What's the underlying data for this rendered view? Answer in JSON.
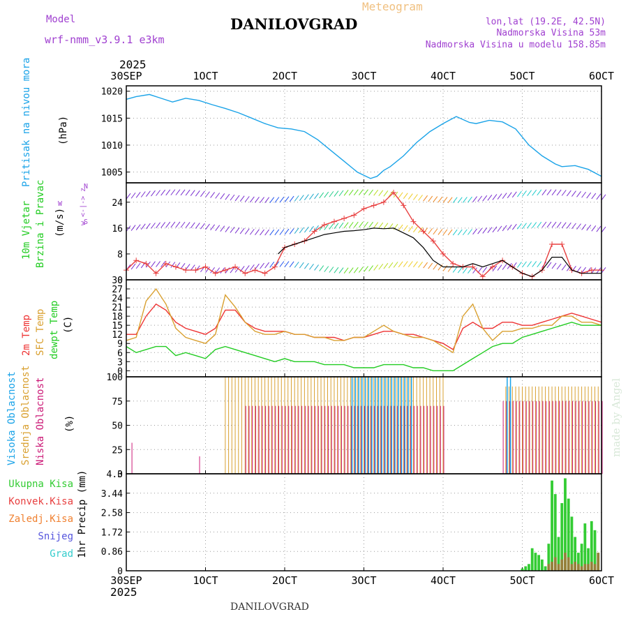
{
  "header": {
    "meteogram_label": "Meteogram",
    "model_label": "Model",
    "model_name": "wrf-nmm_v3.9.1 e3km",
    "station": "DANILOVGRAD",
    "lonlat": "lon,lat (19.2E, 42.5N)",
    "altitude": "Nadmorska Visina 53m",
    "model_altitude": "Nadmorska Visina u modelu 158.85m",
    "year_top": "2025",
    "year_bottom": "2025",
    "footer_station": "DANILOVGRAD",
    "credit": "made by Angel"
  },
  "colors": {
    "pressure": "#1aa3e8",
    "temp2m": "#ee3333",
    "sfc_temp": "#d9a030",
    "dewpt": "#22cc22",
    "wind_speed": "#e84040",
    "gust": "#000000",
    "high_cloud": "#1aa3e8",
    "mid_cloud": "#d9a030",
    "low_cloud": "#cc1a77",
    "total_precip": "#33cc33",
    "conv_precip": "#e84040",
    "frozen_precip": "#f08030",
    "snow": "#5555dd",
    "hail": "#33cccc",
    "purple_text": "#a040d0",
    "grid": "#999999"
  },
  "panel_labels": {
    "pressure": {
      "name": "Pritisak na nivou mora",
      "unit": "(hPa)"
    },
    "wind": {
      "name1": "10m Vjetar",
      "name2": "Brzina i Pravac",
      "unit": "(m/s)",
      "compass": "w <-|-> z",
      "compass_side": "W",
      "compass_top": "N",
      "compass_bottom": "S"
    },
    "temp": {
      "t2m": "2m Temp",
      "sfc": "SFC Temp",
      "dew": "dewpt Temp",
      "unit": "(C)"
    },
    "cloud": {
      "high": "Visoka Oblacnost",
      "mid": "Srednja Oblacnost",
      "low": "Niska Oblacnost",
      "unit": "(%)"
    },
    "precip": {
      "axis": "1hr Precip (mm)",
      "legend": [
        "Ukupna Kisa",
        "Konvek.Kisa",
        "Zaledj.Kisa",
        "Snijeg",
        "Grad"
      ]
    }
  },
  "chart_data": {
    "type": "line",
    "x_axis": {
      "ticks": [
        "30SEP",
        "1OCT",
        "2OCT",
        "3OCT",
        "4OCT",
        "5OCT",
        "6OCT"
      ],
      "unit": "hours",
      "range": [
        0,
        144
      ]
    },
    "panels": [
      {
        "name": "pressure",
        "type": "line",
        "ylabel": "(hPa)",
        "ylim": [
          1003,
          1021
        ],
        "yticks": [
          1005,
          1010,
          1015,
          1020
        ],
        "series": [
          {
            "name": "Pritisak na nivou mora",
            "x": [
              0,
              3,
              7,
              10,
              14,
              18,
              22,
              26,
              30,
              34,
              38,
              42,
              46,
              50,
              54,
              58,
              62,
              66,
              70,
              74,
              76,
              78,
              80,
              84,
              88,
              90,
              92,
              96,
              100,
              104,
              106,
              110,
              114,
              118,
              122,
              126,
              130,
              132,
              136,
              140,
              144
            ],
            "values": [
              1018.5,
              1019.0,
              1019.4,
              1018.8,
              1018.0,
              1018.7,
              1018.3,
              1017.5,
              1016.8,
              1016.0,
              1015.0,
              1014.0,
              1013.2,
              1013.0,
              1012.5,
              1011.0,
              1009.0,
              1007.0,
              1005.0,
              1003.8,
              1004.2,
              1005.3,
              1006.0,
              1008.0,
              1010.5,
              1011.5,
              1012.5,
              1014.0,
              1015.3,
              1014.2,
              1014.0,
              1014.6,
              1014.3,
              1013.0,
              1010.0,
              1008.0,
              1006.5,
              1006.0,
              1006.2,
              1005.5,
              1004.2
            ]
          }
        ]
      },
      {
        "name": "wind",
        "type": "line",
        "ylabel": "(m/s)",
        "ylim": [
          0,
          30
        ],
        "yticks": [
          0,
          8,
          16,
          24
        ],
        "series": [
          {
            "name": "10m wind speed",
            "x": [
              0,
              3,
              6,
              9,
              12,
              15,
              18,
              21,
              24,
              27,
              30,
              33,
              36,
              39,
              42,
              45,
              48,
              51,
              54,
              57,
              60,
              63,
              66,
              69,
              72,
              75,
              78,
              81,
              84,
              87,
              90,
              93,
              96,
              99,
              102,
              105,
              108,
              111,
              114,
              117,
              120,
              123,
              126,
              129,
              132,
              135,
              138,
              141,
              144
            ],
            "values": [
              3,
              6,
              5,
              2,
              5,
              4,
              3,
              3,
              4,
              2,
              3,
              4,
              2,
              3,
              2,
              4,
              10,
              11,
              12,
              15,
              17,
              18,
              19,
              20,
              22,
              23,
              24,
              27,
              23,
              18,
              15,
              12,
              8,
              5,
              4,
              4,
              1,
              4,
              6,
              4,
              2,
              1,
              3,
              11,
              11,
              3,
              2,
              3,
              3
            ]
          },
          {
            "name": "gust",
            "x": [
              96,
              99,
              102,
              105,
              108,
              111,
              114,
              117,
              120,
              123,
              126,
              129,
              132,
              135,
              138,
              141,
              144
            ],
            "values": [
              4,
              4,
              4,
              5,
              4,
              5,
              6,
              4,
              2,
              1,
              3,
              7,
              7,
              3,
              2,
              2,
              2
            ]
          },
          {
            "name": "black line",
            "x": [
              46,
              48,
              51,
              54,
              57,
              60,
              63,
              66,
              69,
              72,
              75,
              78,
              81,
              84,
              87,
              90,
              93,
              96
            ],
            "values": [
              8,
              10,
              11,
              12,
              13,
              14,
              14.5,
              15,
              15.2,
              15.5,
              16,
              15.8,
              16,
              14.5,
              13,
              10,
              6,
              4
            ]
          }
        ]
      },
      {
        "name": "temperature",
        "type": "line",
        "ylabel": "(C)",
        "ylim": [
          -2,
          30
        ],
        "yticks": [
          0,
          3,
          6,
          9,
          12,
          15,
          18,
          21,
          24,
          27,
          30
        ],
        "series": [
          {
            "name": "2m Temp",
            "x": [
              0,
              3,
              6,
              9,
              12,
              15,
              18,
              21,
              24,
              27,
              30,
              33,
              36,
              39,
              42,
              45,
              48,
              51,
              54,
              57,
              60,
              63,
              66,
              69,
              72,
              75,
              78,
              81,
              84,
              87,
              90,
              93,
              96,
              99,
              102,
              105,
              108,
              111,
              114,
              117,
              120,
              123,
              126,
              129,
              132,
              135,
              138,
              141,
              144
            ],
            "values": [
              12,
              12,
              18,
              22,
              20,
              16,
              14,
              13,
              12,
              14,
              20,
              20,
              16,
              14,
              13,
              13,
              13,
              12,
              12,
              11,
              11,
              11,
              10,
              11,
              11,
              12,
              13,
              13,
              12,
              12,
              11,
              10,
              9,
              7,
              14,
              16,
              14,
              14,
              16,
              16,
              15,
              15,
              16,
              17,
              18,
              19,
              18,
              17,
              16
            ]
          },
          {
            "name": "SFC Temp",
            "x": [
              0,
              3,
              6,
              9,
              12,
              15,
              18,
              21,
              24,
              27,
              30,
              33,
              36,
              39,
              42,
              45,
              48,
              51,
              54,
              57,
              60,
              63,
              66,
              69,
              72,
              75,
              78,
              81,
              84,
              87,
              90,
              93,
              96,
              99,
              102,
              105,
              108,
              111,
              114,
              117,
              120,
              123,
              126,
              129,
              132,
              135,
              138,
              141,
              144
            ],
            "values": [
              10,
              11,
              23,
              27,
              22,
              14,
              11,
              10,
              9,
              12,
              25,
              21,
              16,
              13,
              12,
              12,
              13,
              12,
              12,
              11,
              11,
              10,
              10,
              11,
              11,
              13,
              15,
              13,
              12,
              11,
              11,
              10,
              8,
              6,
              18,
              22,
              14,
              10,
              13,
              13,
              14,
              14,
              15,
              15,
              18,
              18,
              16,
              16,
              15
            ]
          },
          {
            "name": "dewpt Temp",
            "x": [
              0,
              3,
              6,
              9,
              12,
              15,
              18,
              21,
              24,
              27,
              30,
              33,
              36,
              39,
              42,
              45,
              48,
              51,
              54,
              57,
              60,
              63,
              66,
              69,
              72,
              75,
              78,
              81,
              84,
              87,
              90,
              93,
              96,
              99,
              102,
              105,
              108,
              111,
              114,
              117,
              120,
              123,
              126,
              129,
              132,
              135,
              138,
              141,
              144
            ],
            "values": [
              8,
              6,
              7,
              8,
              8,
              5,
              6,
              5,
              4,
              7,
              8,
              7,
              6,
              5,
              4,
              3,
              4,
              3,
              3,
              3,
              2,
              2,
              2,
              1,
              1,
              1,
              2,
              2,
              2,
              1,
              1,
              0,
              0,
              0,
              2,
              4,
              6,
              8,
              9,
              9,
              11,
              12,
              13,
              14,
              15,
              16,
              15,
              15,
              15
            ]
          }
        ]
      },
      {
        "name": "cloud",
        "type": "bar",
        "ylabel": "(%)",
        "ylim": [
          0,
          100
        ],
        "yticks": [
          0,
          25,
          50,
          75,
          100
        ],
        "series": [
          {
            "name": "Srednja Oblacnost",
            "segments": [
              [
                30,
                96,
                100
              ],
              [
                115,
                144,
                90
              ]
            ]
          },
          {
            "name": "Niska Oblacnost",
            "segments": [
              [
                1.5,
                2,
                32
              ],
              [
                22,
                22.3,
                18
              ],
              [
                36,
                96,
                70
              ],
              [
                114,
                144,
                75
              ]
            ]
          },
          {
            "name": "Visoka Oblacnost",
            "segments": [
              [
                68,
                86,
                100
              ],
              [
                115,
                116,
                100
              ]
            ]
          }
        ]
      },
      {
        "name": "precip",
        "type": "bar",
        "ylabel": "1hr Precip (mm)",
        "ylim": [
          0,
          4.3
        ],
        "yticks": [
          0,
          0.86,
          1.72,
          2.58,
          3.44,
          4.3
        ],
        "series": [
          {
            "name": "Ukupna Kisa",
            "x": [
              120,
              121,
              122,
              123,
              124,
              125,
              126,
              127,
              128,
              129,
              130,
              131,
              132,
              133,
              134,
              135,
              136,
              137,
              138,
              139,
              140,
              141,
              142,
              143
            ],
            "values": [
              0.1,
              0.2,
              0.3,
              1.0,
              0.8,
              0.7,
              0.5,
              0.2,
              1.2,
              4.0,
              3.4,
              1.5,
              3.0,
              4.1,
              3.2,
              2.4,
              1.5,
              0.8,
              1.2,
              2.1,
              1.0,
              2.2,
              1.8,
              0.8
            ]
          },
          {
            "name": "Konvek.Kisa",
            "x": [
              128,
              129,
              130,
              131,
              132,
              133,
              134,
              135,
              136,
              137,
              138,
              139,
              140,
              141,
              142,
              143
            ],
            "values": [
              0.3,
              0.4,
              0.6,
              0.3,
              0.5,
              0.8,
              0.6,
              0.3,
              0.4,
              0.3,
              0.2,
              0.3,
              0.3,
              0.4,
              0.3,
              0.8
            ]
          }
        ]
      }
    ]
  }
}
